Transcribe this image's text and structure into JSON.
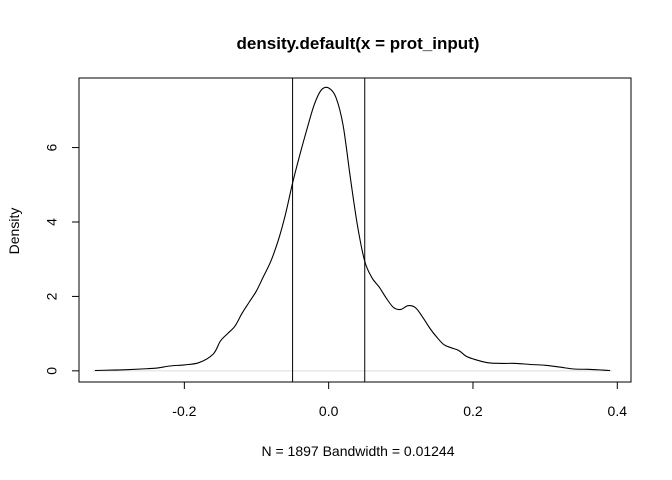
{
  "chart_data": {
    "type": "line",
    "title": "density.default(x = prot_input)",
    "xlabel": "N = 1897   Bandwidth = 0.01244",
    "ylabel": "Density",
    "xlim": [
      -0.346,
      0.419
    ],
    "ylim": [
      -0.3,
      7.87
    ],
    "x_ticks": [
      {
        "value": -0.2,
        "label": "-0.2"
      },
      {
        "value": 0.0,
        "label": "0.0"
      },
      {
        "value": 0.2,
        "label": "0.2"
      },
      {
        "value": 0.4,
        "label": "0.4"
      }
    ],
    "y_ticks": [
      {
        "value": 0,
        "label": "0"
      },
      {
        "value": 2,
        "label": "2"
      },
      {
        "value": 4,
        "label": "4"
      },
      {
        "value": 6,
        "label": "6"
      }
    ],
    "grid": false,
    "zero_line": {
      "y": 0,
      "color": "#dddddd"
    },
    "vertical_lines": [
      -0.05,
      0.05
    ],
    "series": [
      {
        "color": "#000000",
        "x": [
          -0.324,
          -0.3,
          -0.28,
          -0.26,
          -0.24,
          -0.22,
          -0.2,
          -0.18,
          -0.16,
          -0.15,
          -0.14,
          -0.13,
          -0.12,
          -0.11,
          -0.1,
          -0.09,
          -0.08,
          -0.07,
          -0.06,
          -0.05,
          -0.04,
          -0.03,
          -0.02,
          -0.01,
          0.0,
          0.01,
          0.02,
          0.03,
          0.04,
          0.05,
          0.06,
          0.07,
          0.08,
          0.09,
          0.1,
          0.11,
          0.12,
          0.13,
          0.14,
          0.15,
          0.16,
          0.17,
          0.18,
          0.19,
          0.2,
          0.22,
          0.24,
          0.26,
          0.28,
          0.3,
          0.32,
          0.34,
          0.36,
          0.38,
          0.39
        ],
        "y": [
          0.01,
          0.02,
          0.03,
          0.05,
          0.07,
          0.13,
          0.16,
          0.22,
          0.45,
          0.8,
          1.0,
          1.2,
          1.55,
          1.85,
          2.15,
          2.55,
          2.95,
          3.5,
          4.2,
          5.05,
          5.8,
          6.5,
          7.15,
          7.55,
          7.6,
          7.35,
          6.6,
          5.2,
          3.9,
          2.95,
          2.5,
          2.25,
          1.95,
          1.7,
          1.65,
          1.75,
          1.7,
          1.45,
          1.15,
          0.9,
          0.7,
          0.62,
          0.55,
          0.4,
          0.32,
          0.22,
          0.2,
          0.2,
          0.17,
          0.15,
          0.1,
          0.05,
          0.04,
          0.02,
          0.01
        ]
      }
    ]
  }
}
